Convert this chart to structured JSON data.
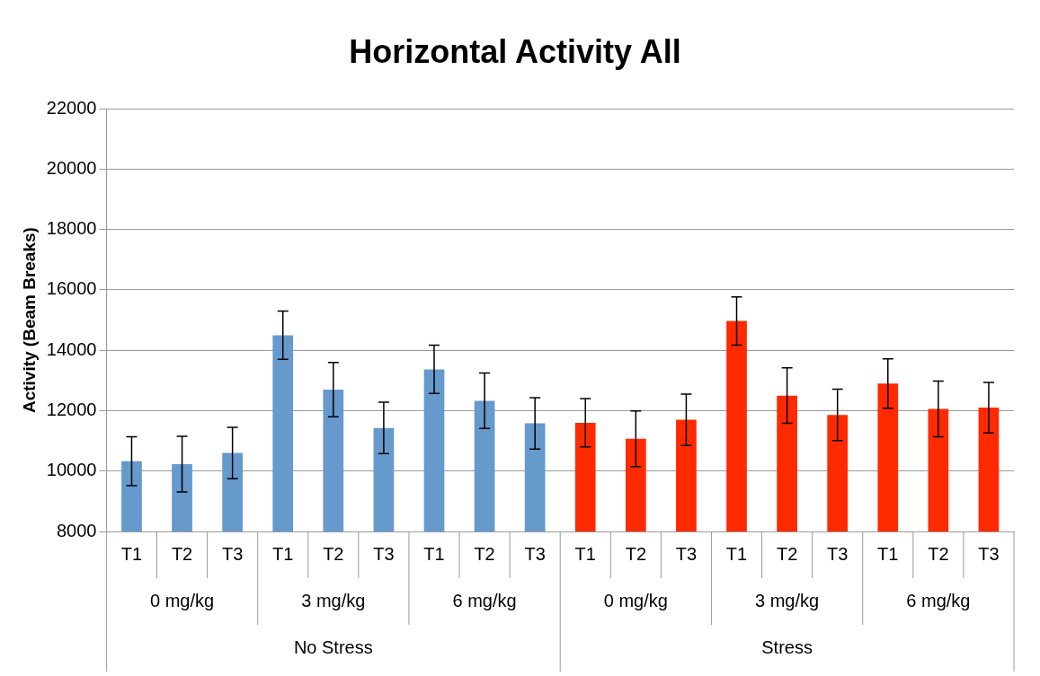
{
  "chart_data": {
    "type": "bar",
    "title": "Horizontal Activity All",
    "ylabel": "Activity (Beam Breaks)",
    "categories": [
      "T1",
      "T2",
      "T3",
      "T1",
      "T2",
      "T3",
      "T1",
      "T2",
      "T3",
      "T1",
      "T2",
      "T3",
      "T1",
      "T2",
      "T3",
      "T1",
      "T2",
      "T3"
    ],
    "values": [
      10330,
      10230,
      10600,
      14500,
      12700,
      11430,
      13370,
      12330,
      11580,
      11600,
      11070,
      11700,
      14970,
      12500,
      11860,
      12900,
      12060,
      12100
    ],
    "errors": [
      810,
      920,
      850,
      800,
      900,
      850,
      800,
      920,
      850,
      800,
      920,
      850,
      800,
      920,
      850,
      820,
      920,
      840
    ],
    "colors": [
      "#6699cc",
      "#6699cc",
      "#6699cc",
      "#6699cc",
      "#6699cc",
      "#6699cc",
      "#6699cc",
      "#6699cc",
      "#6699cc",
      "#ff2a00",
      "#ff2a00",
      "#ff2a00",
      "#ff2a00",
      "#ff2a00",
      "#ff2a00",
      "#ff2a00",
      "#ff2a00",
      "#ff2a00"
    ],
    "ylim": [
      8000,
      22000
    ],
    "yticks": [
      8000,
      10000,
      12000,
      14000,
      16000,
      18000,
      20000,
      22000
    ],
    "grid": "y",
    "legend": false,
    "annotations": [
      "0 mg/kg",
      "3 mg/kg",
      "6 mg/kg",
      "0 mg/kg",
      "3 mg/kg",
      "6 mg/kg",
      "No Stress",
      "Stress"
    ]
  }
}
